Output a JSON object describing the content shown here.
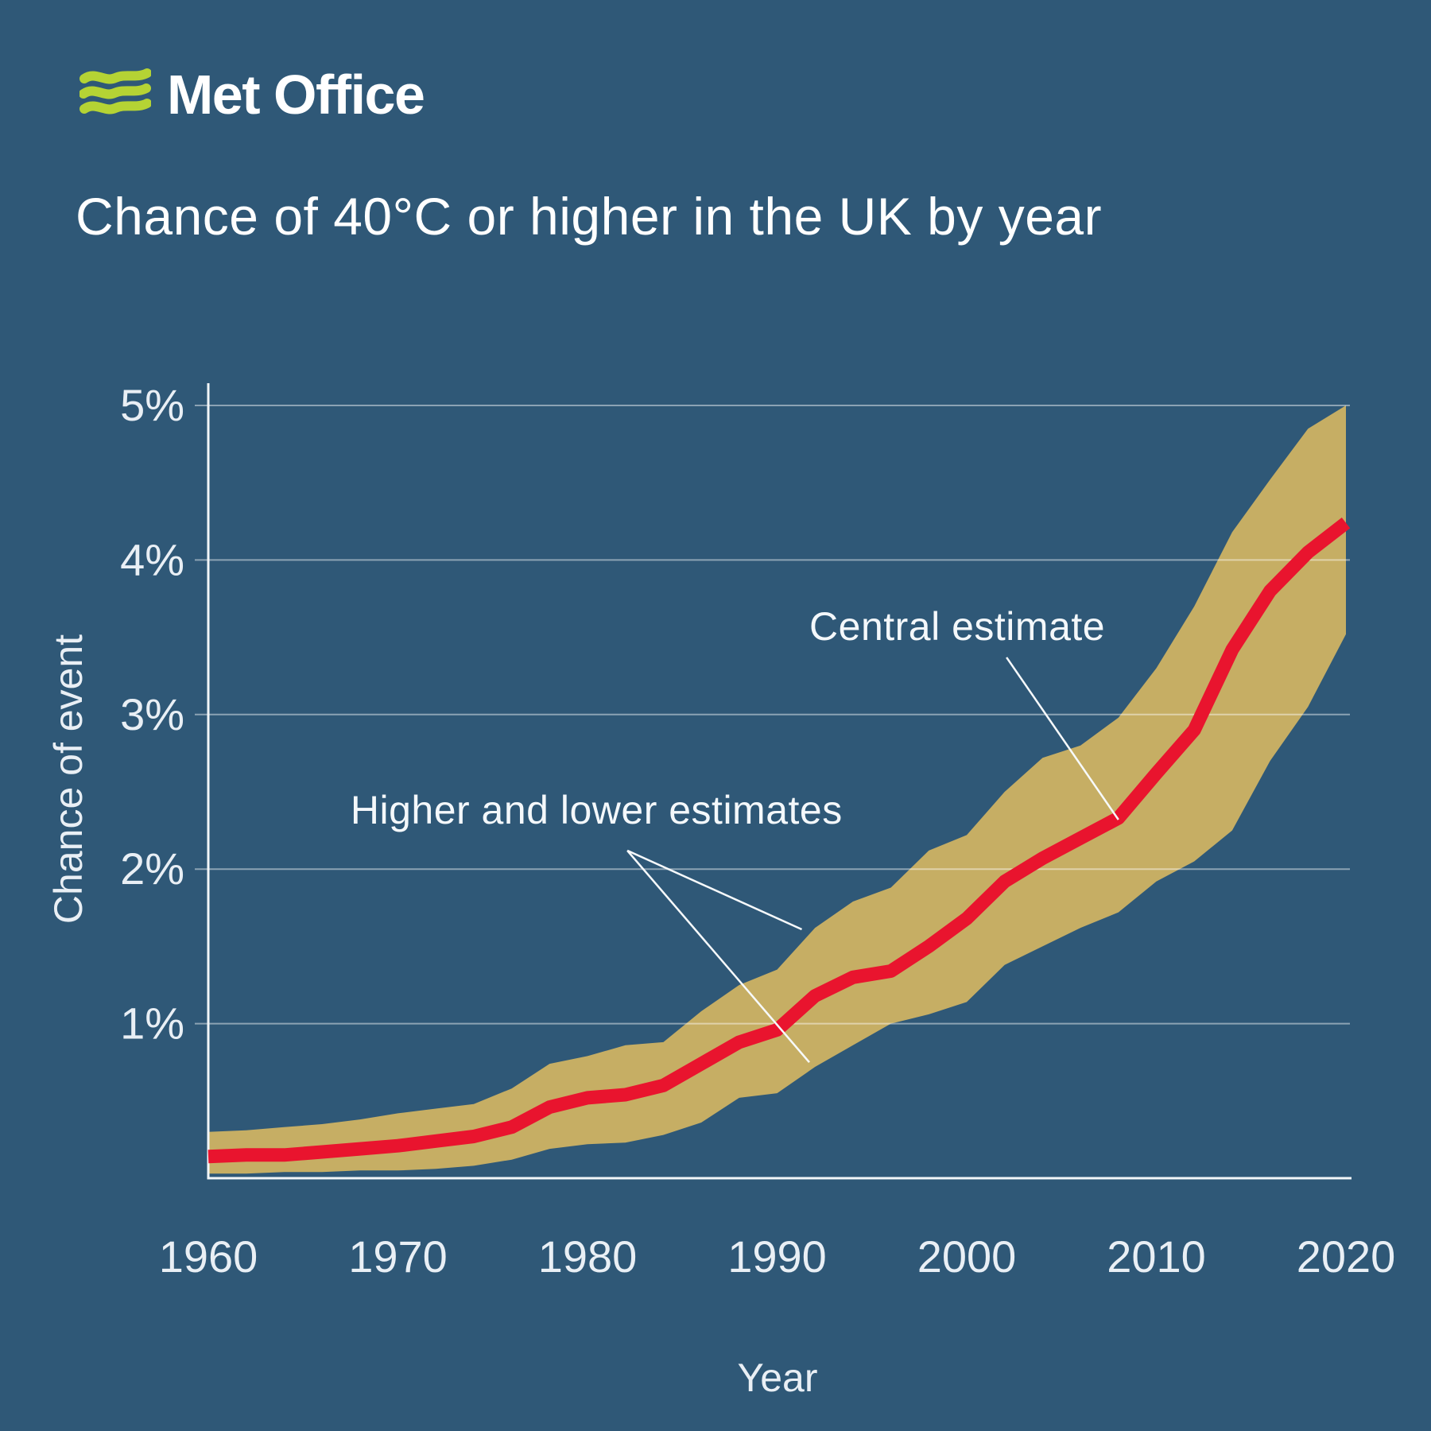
{
  "brand": {
    "name": "Met Office"
  },
  "title": "Chance of 40°C or higher in the UK by year",
  "chart_data": {
    "type": "area",
    "title": "Chance of 40°C or higher in the UK by year",
    "xlabel": "Year",
    "ylabel": "Chance of event",
    "xlim": [
      1960,
      2020
    ],
    "ylim": [
      0,
      5
    ],
    "grid": true,
    "legend_position": "none",
    "x_ticks": [
      {
        "value": 1960,
        "label": "1960"
      },
      {
        "value": 1970,
        "label": "1970"
      },
      {
        "value": 1980,
        "label": "1980"
      },
      {
        "value": 1990,
        "label": "1990"
      },
      {
        "value": 2000,
        "label": "2000"
      },
      {
        "value": 2010,
        "label": "2010"
      },
      {
        "value": 2020,
        "label": "2020"
      }
    ],
    "y_ticks": [
      {
        "value": 1,
        "label": "1%"
      },
      {
        "value": 2,
        "label": "2%"
      },
      {
        "value": 3,
        "label": "3%"
      },
      {
        "value": 4,
        "label": "4%"
      },
      {
        "value": 5,
        "label": "5%"
      }
    ],
    "years": [
      1960,
      1962,
      1964,
      1966,
      1968,
      1970,
      1972,
      1974,
      1976,
      1978,
      1980,
      1982,
      1984,
      1986,
      1988,
      1990,
      1992,
      1994,
      1996,
      1998,
      2000,
      2002,
      2004,
      2006,
      2008,
      2010,
      2012,
      2014,
      2016,
      2018,
      2020
    ],
    "series": [
      {
        "name": "Central estimate",
        "values": [
          0.14,
          0.15,
          0.15,
          0.17,
          0.19,
          0.21,
          0.24,
          0.27,
          0.33,
          0.46,
          0.52,
          0.54,
          0.6,
          0.74,
          0.88,
          0.96,
          1.18,
          1.3,
          1.34,
          1.5,
          1.68,
          1.92,
          2.07,
          2.2,
          2.33,
          2.62,
          2.9,
          3.42,
          3.8,
          4.05,
          4.24
        ]
      },
      {
        "name": "Lower estimate",
        "values": [
          0.03,
          0.03,
          0.04,
          0.04,
          0.05,
          0.05,
          0.06,
          0.08,
          0.12,
          0.19,
          0.22,
          0.23,
          0.28,
          0.36,
          0.52,
          0.55,
          0.72,
          0.86,
          1.0,
          1.06,
          1.14,
          1.38,
          1.5,
          1.62,
          1.72,
          1.92,
          2.05,
          2.25,
          2.7,
          3.05,
          3.52
        ]
      },
      {
        "name": "Higher estimate",
        "values": [
          0.3,
          0.31,
          0.33,
          0.35,
          0.38,
          0.42,
          0.45,
          0.48,
          0.58,
          0.74,
          0.79,
          0.86,
          0.88,
          1.08,
          1.25,
          1.35,
          1.62,
          1.79,
          1.88,
          2.12,
          2.22,
          2.5,
          2.72,
          2.8,
          2.98,
          3.3,
          3.7,
          4.18,
          4.52,
          4.85,
          5.0
        ]
      }
    ],
    "annotations": [
      {
        "id": "central",
        "text": "Central estimate",
        "label_year": 1991.7,
        "label_value": 3.57,
        "leader_lines": [
          [
            {
              "year": 2002.1,
              "value": 3.37
            },
            {
              "year": 2008.0,
              "value": 2.32
            }
          ]
        ]
      },
      {
        "id": "range",
        "text": "Higher and lower estimates",
        "label_year": 1967.5,
        "label_value": 2.38,
        "leader_lines": [
          [
            {
              "year": 1982.1,
              "value": 2.12
            },
            {
              "year": 1991.3,
              "value": 1.61
            }
          ],
          [
            {
              "year": 1982.1,
              "value": 2.12
            },
            {
              "year": 1991.7,
              "value": 0.75
            }
          ]
        ]
      }
    ]
  },
  "theme": {
    "background": "#2f5877",
    "band": "#c6ae64",
    "line": "#e9142e",
    "grid": "#ffffff",
    "grid_opacity": 0.45,
    "axis": "#f2f6f8",
    "text": "#ffffff",
    "muted_text": "#e9eff5",
    "leader": "#f7fafc",
    "logo_green": "#b5d334"
  }
}
